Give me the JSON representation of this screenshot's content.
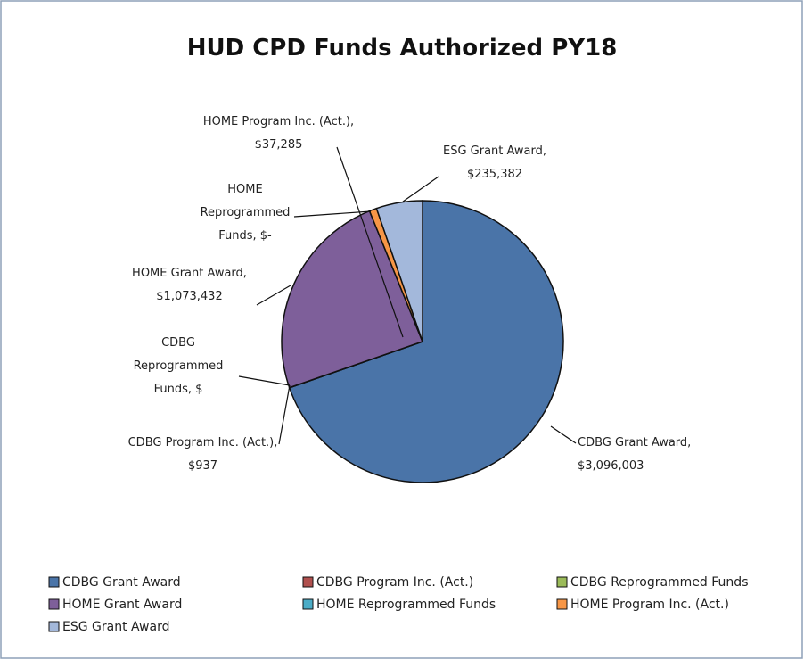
{
  "chart_data": {
    "type": "pie",
    "title": "HUD CPD Funds Authorized PY18",
    "categories": [
      "CDBG Grant Award",
      "CDBG Program Inc. (Act.)",
      "CDBG Reprogrammed Funds",
      "HOME Grant Award",
      "HOME Reprogrammed Funds",
      "HOME Program Inc. (Act.)",
      "ESG Grant Award"
    ],
    "values": [
      3096003,
      937,
      0,
      1073432,
      0,
      37285,
      235382
    ],
    "value_labels": [
      "CDBG Grant Award, $3,096,003",
      "CDBG Program Inc. (Act.), $937",
      "CDBG Reprogrammed Funds, $",
      "HOME Grant Award, $1,073,432",
      "HOME Reprogrammed Funds, $-",
      "HOME Program Inc. (Act.), $37,285",
      "ESG Grant Award, $235,382"
    ],
    "colors": [
      "#4a74a8",
      "#b0504e",
      "#9bbb59",
      "#7e5f9a",
      "#4bacc6",
      "#f79646",
      "#a3b8db"
    ],
    "legend": "bottom"
  }
}
